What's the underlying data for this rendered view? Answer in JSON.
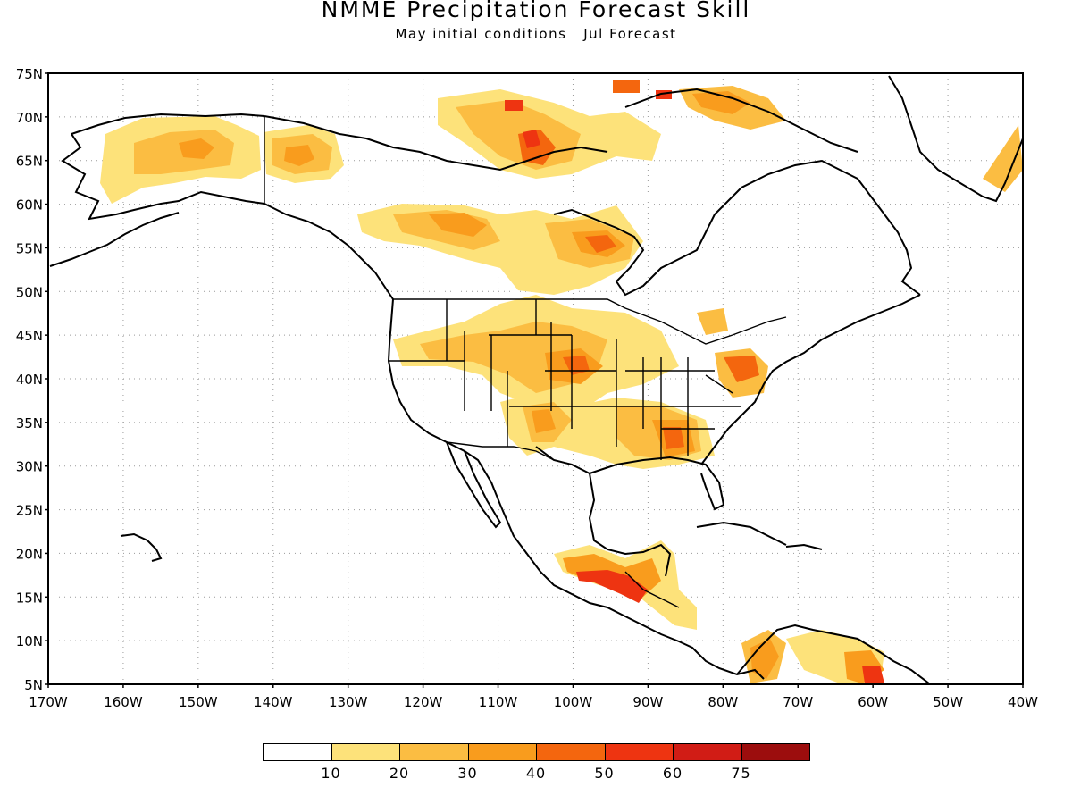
{
  "figure": {
    "title": "NMME Precipitation Forecast Skill",
    "subtitle_conditions": "May initial conditions",
    "subtitle_forecast": "Jul Forecast"
  },
  "map": {
    "projection": "lat-lon",
    "lon_range": [
      -170,
      -40
    ],
    "lat_range": [
      5,
      75
    ],
    "lat_ticks": [
      "75N",
      "70N",
      "65N",
      "60N",
      "55N",
      "50N",
      "45N",
      "40N",
      "35N",
      "30N",
      "25N",
      "20N",
      "15N",
      "10N",
      "5N"
    ],
    "lon_ticks": [
      "170W",
      "160W",
      "150W",
      "140W",
      "130W",
      "120W",
      "110W",
      "100W",
      "90W",
      "80W",
      "70W",
      "60W",
      "50W",
      "40W"
    ],
    "gridlines": "dotted",
    "field": "precipitation forecast skill",
    "skill_regions": [
      {
        "name": "Alaska interior",
        "lon": -150,
        "lat": 65.5,
        "level": 2
      },
      {
        "name": "Yukon",
        "lon": -135,
        "lat": 65,
        "level": 3
      },
      {
        "name": "Northern Canada",
        "lon": -105,
        "lat": 66,
        "level": 4
      },
      {
        "name": "Western Canada",
        "lon": -115,
        "lat": 57,
        "level": 3
      },
      {
        "name": "Hudson Bay south",
        "lon": -98,
        "lat": 55,
        "level": 4
      },
      {
        "name": "Great Plains",
        "lon": -100,
        "lat": 41,
        "level": 3
      },
      {
        "name": "Southern Rockies",
        "lon": -104,
        "lat": 34,
        "level": 3
      },
      {
        "name": "Alabama",
        "lon": -87,
        "lat": 32.5,
        "level": 4
      },
      {
        "name": "Pennsylvania",
        "lon": -78,
        "lat": 41,
        "level": 4
      },
      {
        "name": "Southern Mexico",
        "lon": -93,
        "lat": 16,
        "level": 5
      },
      {
        "name": "Colombia",
        "lon": -75,
        "lat": 7,
        "level": 4
      },
      {
        "name": "Venezuela",
        "lon": -61,
        "lat": 6,
        "level": 4
      }
    ]
  },
  "colorbar": {
    "tick_labels": [
      "10",
      "20",
      "30",
      "40",
      "50",
      "60",
      "75"
    ],
    "colors": [
      "#ffffff",
      "#fde27a",
      "#fbbd42",
      "#f99c1d",
      "#f4660e",
      "#ee3411",
      "#d11c15",
      "#9c0d0d"
    ]
  }
}
